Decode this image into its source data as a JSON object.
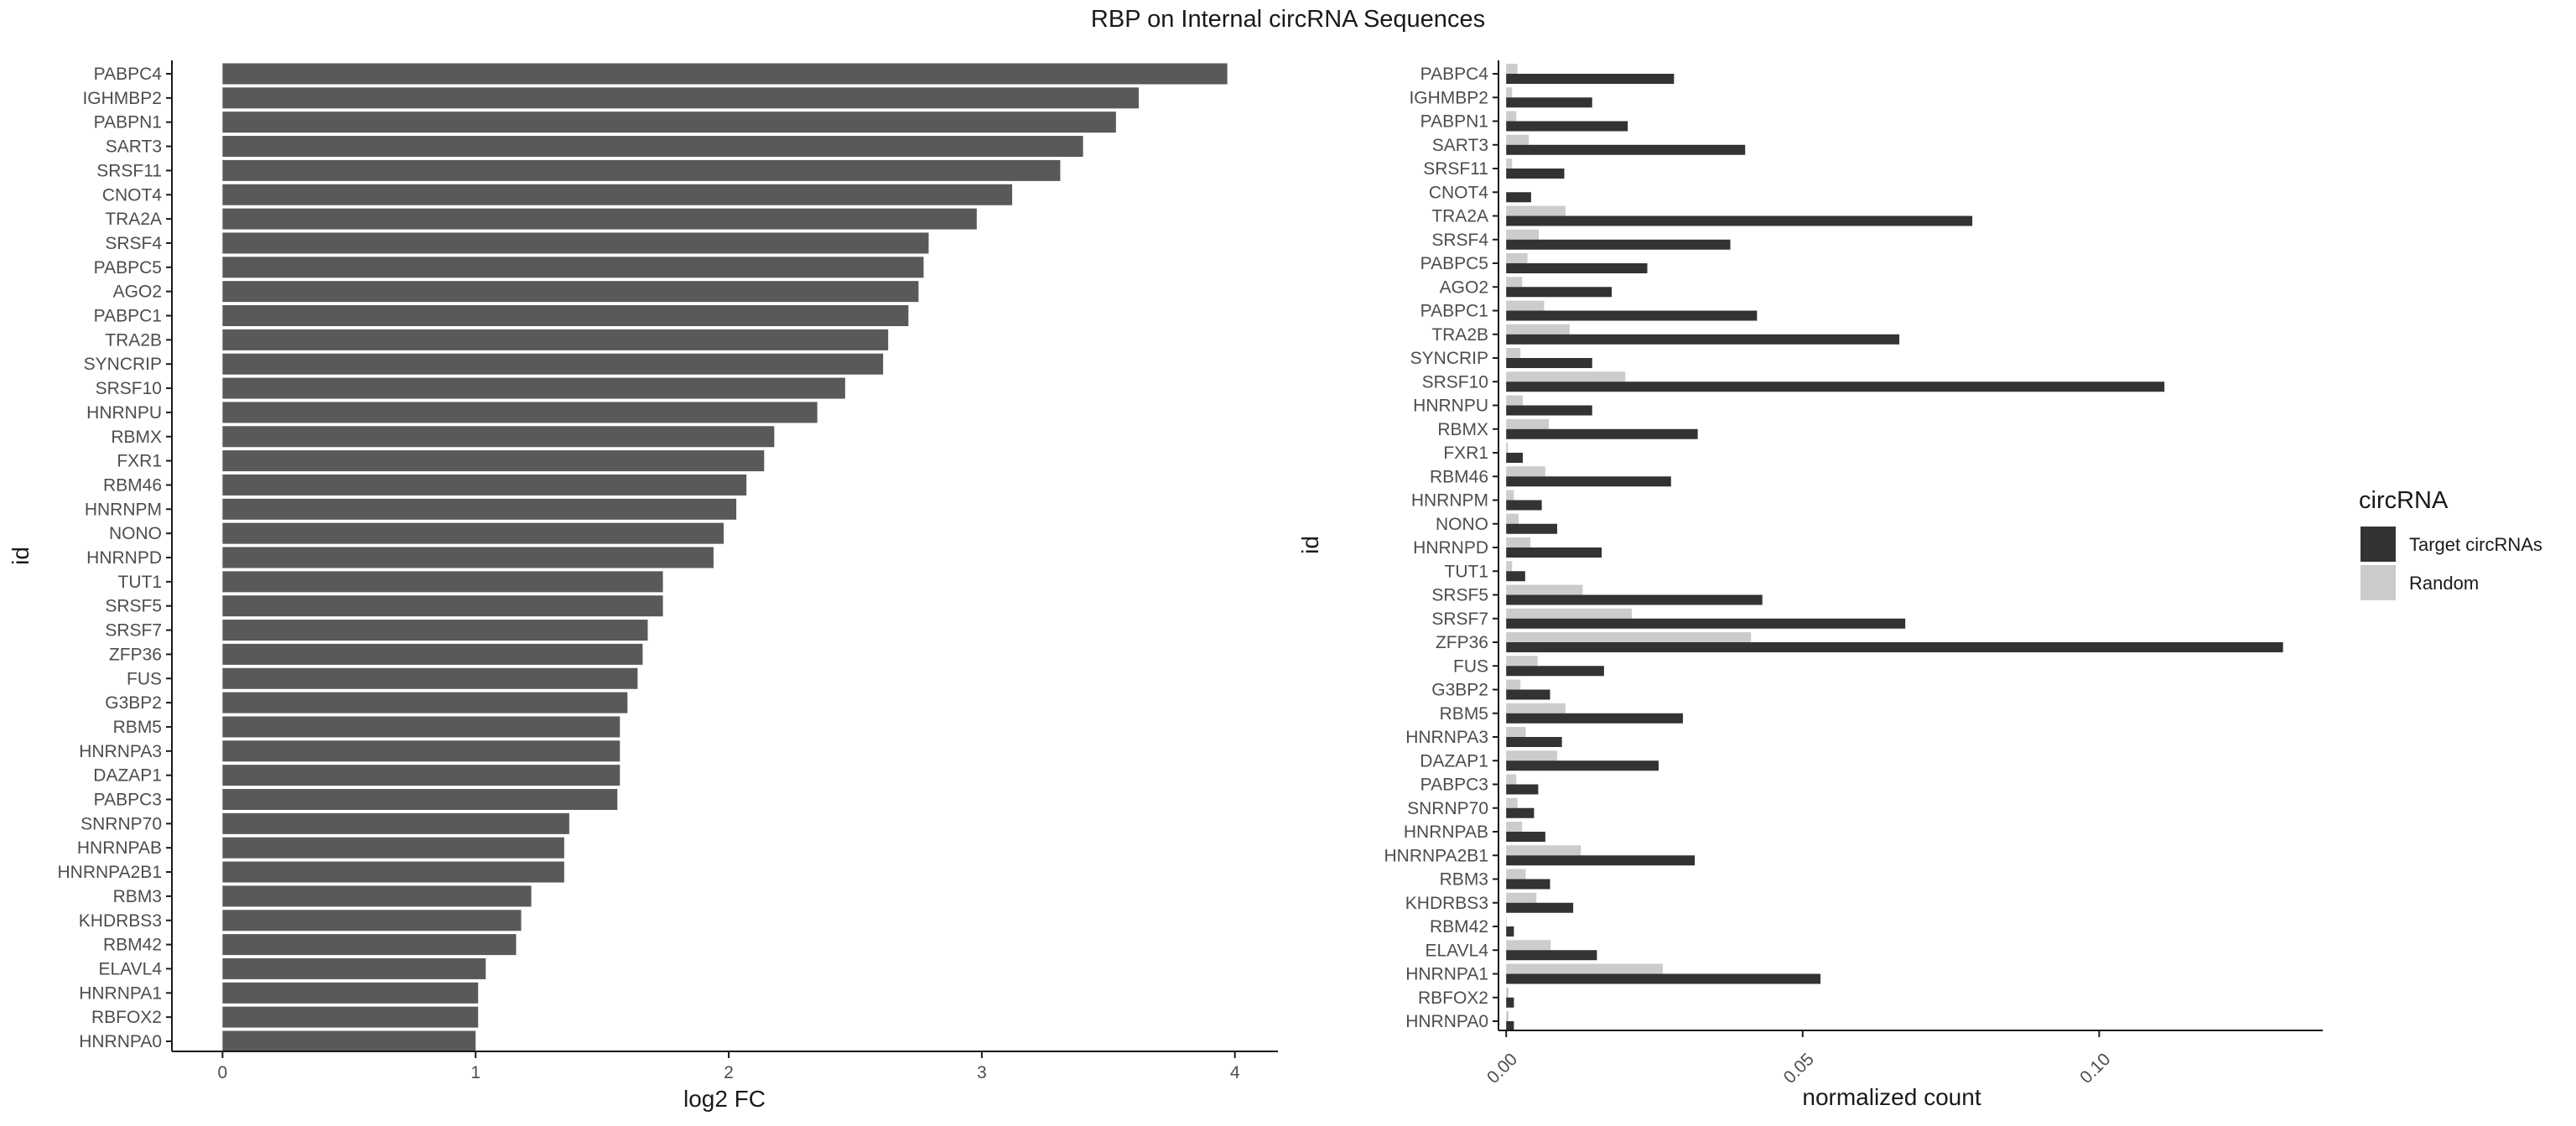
{
  "title": "RBP on Internal circRNA Sequences",
  "chart_data": [
    {
      "type": "bar",
      "orientation": "horizontal",
      "xlabel": "log2 FC",
      "ylabel": "id",
      "xlim": [
        -0.2,
        4.17
      ],
      "xticks": [
        "0",
        "1",
        "2",
        "3",
        "4"
      ],
      "grid": false,
      "bar_color": "#595959",
      "categories": [
        "PABPC4",
        "IGHMBP2",
        "PABPN1",
        "SART3",
        "SRSF11",
        "CNOT4",
        "TRA2A",
        "SRSF4",
        "PABPC5",
        "AGO2",
        "PABPC1",
        "TRA2B",
        "SYNCRIP",
        "SRSF10",
        "HNRNPU",
        "RBMX",
        "FXR1",
        "RBM46",
        "HNRNPM",
        "NONO",
        "HNRNPD",
        "TUT1",
        "SRSF5",
        "SRSF7",
        "ZFP36",
        "FUS",
        "G3BP2",
        "RBM5",
        "HNRNPA3",
        "DAZAP1",
        "PABPC3",
        "SNRNP70",
        "HNRNPAB",
        "HNRNPA2B1",
        "RBM3",
        "KHDRBS3",
        "RBM42",
        "ELAVL4",
        "HNRNPA1",
        "RBFOX2",
        "HNRNPA0"
      ],
      "values": [
        3.97,
        3.62,
        3.53,
        3.4,
        3.31,
        3.12,
        2.98,
        2.79,
        2.77,
        2.75,
        2.71,
        2.63,
        2.61,
        2.46,
        2.35,
        2.18,
        2.14,
        2.07,
        2.03,
        1.98,
        1.94,
        1.74,
        1.74,
        1.68,
        1.66,
        1.64,
        1.6,
        1.57,
        1.57,
        1.57,
        1.56,
        1.37,
        1.35,
        1.35,
        1.22,
        1.18,
        1.16,
        1.04,
        1.01,
        1.01,
        1.0
      ]
    },
    {
      "type": "bar",
      "orientation": "horizontal",
      "grouped": true,
      "xlabel": "normalized count",
      "ylabel": "id",
      "xlim": [
        -0.0013,
        0.1377
      ],
      "xticks": [
        "0.00",
        "0.05",
        "0.10"
      ],
      "grid": false,
      "categories": [
        "PABPC4",
        "IGHMBP2",
        "PABPN1",
        "SART3",
        "SRSF11",
        "CNOT4",
        "TRA2A",
        "SRSF4",
        "PABPC5",
        "AGO2",
        "PABPC1",
        "TRA2B",
        "SYNCRIP",
        "SRSF10",
        "HNRNPU",
        "RBMX",
        "FXR1",
        "RBM46",
        "HNRNPM",
        "NONO",
        "HNRNPD",
        "TUT1",
        "SRSF5",
        "SRSF7",
        "ZFP36",
        "FUS",
        "G3BP2",
        "RBM5",
        "HNRNPA3",
        "DAZAP1",
        "PABPC3",
        "SNRNP70",
        "HNRNPAB",
        "HNRNPA2B1",
        "RBM3",
        "KHDRBS3",
        "RBM42",
        "ELAVL4",
        "HNRNPA1",
        "RBFOX2",
        "HNRNPA0"
      ],
      "legend": {
        "title": "circRNA",
        "placement": "right"
      },
      "series": [
        {
          "name": "Target circRNAs",
          "color": "#333333",
          "values": [
            0.0283,
            0.0145,
            0.0205,
            0.0403,
            0.0098,
            0.0042,
            0.0786,
            0.0378,
            0.0238,
            0.0178,
            0.0423,
            0.0663,
            0.0145,
            0.111,
            0.0145,
            0.0323,
            0.0028,
            0.0278,
            0.006,
            0.0086,
            0.0161,
            0.0032,
            0.0432,
            0.0673,
            0.131,
            0.0165,
            0.0074,
            0.0298,
            0.0094,
            0.0257,
            0.0054,
            0.0047,
            0.0066,
            0.0318,
            0.0074,
            0.0113,
            0.0013,
            0.0153,
            0.053,
            0.0013,
            0.0013
          ]
        },
        {
          "name": "Random",
          "color": "#cccccc",
          "values": [
            0.0019,
            0.001,
            0.0017,
            0.0038,
            0.001,
            0.0,
            0.01,
            0.0055,
            0.0036,
            0.0027,
            0.0064,
            0.0107,
            0.0024,
            0.0201,
            0.0028,
            0.0072,
            0.0003,
            0.0066,
            0.0013,
            0.0021,
            0.0041,
            0.001,
            0.0129,
            0.0212,
            0.0413,
            0.0053,
            0.0024,
            0.01,
            0.0033,
            0.0086,
            0.0017,
            0.0019,
            0.0027,
            0.0126,
            0.0033,
            0.0051,
            0.0001,
            0.0075,
            0.0264,
            0.0004,
            0.0004
          ]
        }
      ]
    }
  ]
}
